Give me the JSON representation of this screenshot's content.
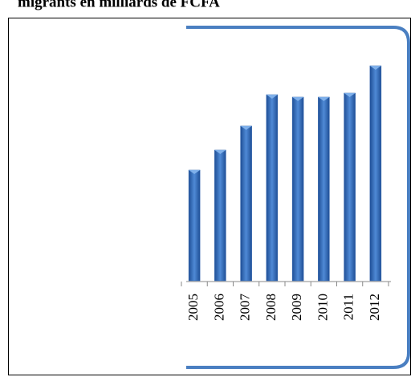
{
  "chart_data": {
    "type": "bar",
    "title": "migrants en milliards de FCFA",
    "categories": [
      "2005",
      "2006",
      "2007",
      "2008",
      "2009",
      "2010",
      "2011",
      "2012"
    ],
    "values": [
      138,
      163,
      193,
      232,
      229,
      229,
      234,
      268
    ],
    "color": "#2f63ad",
    "ylim": [
      0,
      300
    ]
  }
}
